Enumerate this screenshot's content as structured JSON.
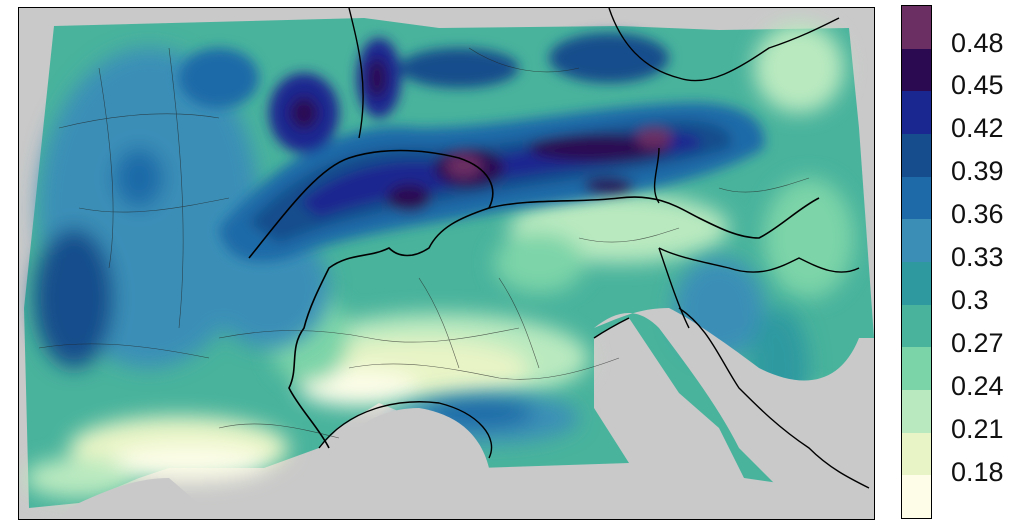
{
  "map": {
    "title": "",
    "variable": "gridded field over the Alpine region",
    "colors": {
      "missing": "#c9c9c9",
      "sea": "#c9c9c9",
      "border": "#000000"
    }
  },
  "legend": {
    "labels": [
      "0.48",
      "0.45",
      "0.42",
      "0.39",
      "0.36",
      "0.33",
      "0.3",
      "0.27",
      "0.24",
      "0.21",
      "0.18"
    ],
    "bins": [
      {
        "color": "#6b2f63"
      },
      {
        "color": "#2b0a52"
      },
      {
        "color": "#1a2790"
      },
      {
        "color": "#164d8c"
      },
      {
        "color": "#1e6aa8"
      },
      {
        "color": "#3b8fb7"
      },
      {
        "color": "#2e9aa0"
      },
      {
        "color": "#49b39c"
      },
      {
        "color": "#7bd4a8"
      },
      {
        "color": "#b9e9bf"
      },
      {
        "color": "#e8f4c6"
      },
      {
        "color": "#fdfde8"
      }
    ]
  }
}
